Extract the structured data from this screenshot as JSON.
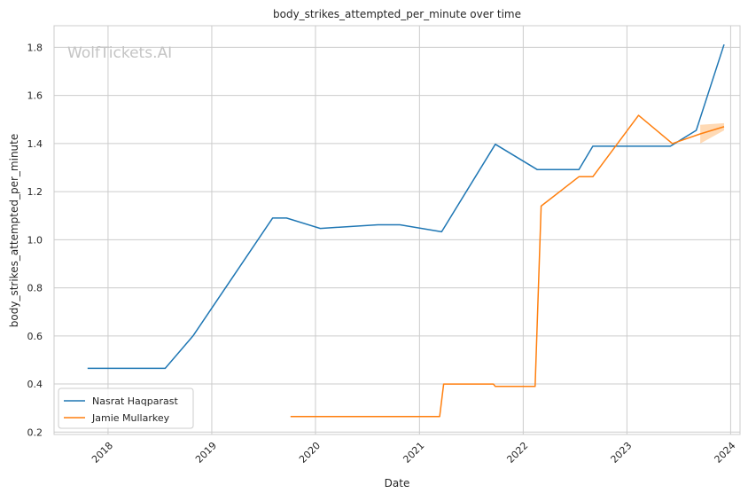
{
  "watermark": "WolfTickets.AI",
  "chart_data": {
    "type": "line",
    "title": "body_strikes_attempted_per_minute over time",
    "xlabel": "Date",
    "ylabel": "body_strikes_attempted_per_minute",
    "xlim": [
      "2017-06-25",
      "2024-02-03"
    ],
    "ylim": [
      0.19,
      1.89
    ],
    "x_ticks": [
      {
        "date": "2018-01-01",
        "label": "2018"
      },
      {
        "date": "2019-01-01",
        "label": "2019"
      },
      {
        "date": "2020-01-01",
        "label": "2020"
      },
      {
        "date": "2021-01-01",
        "label": "2021"
      },
      {
        "date": "2022-01-01",
        "label": "2022"
      },
      {
        "date": "2023-01-01",
        "label": "2023"
      },
      {
        "date": "2024-01-01",
        "label": "2024"
      }
    ],
    "y_ticks": [
      {
        "value": 0.2,
        "label": "0.2"
      },
      {
        "value": 0.4,
        "label": "0.4"
      },
      {
        "value": 0.6,
        "label": "0.6"
      },
      {
        "value": 0.8,
        "label": "0.8"
      },
      {
        "value": 1.0,
        "label": "1.0"
      },
      {
        "value": 1.2,
        "label": "1.2"
      },
      {
        "value": 1.4,
        "label": "1.4"
      },
      {
        "value": 1.6,
        "label": "1.6"
      },
      {
        "value": 1.8,
        "label": "1.8"
      }
    ],
    "grid": true,
    "legend_position": "lower-left",
    "series": [
      {
        "name": "Nasrat Haqparast",
        "color": "#1f77b4",
        "points": [
          [
            "2017-10-21",
            0.465
          ],
          [
            "2018-07-21",
            0.465
          ],
          [
            "2018-10-27",
            0.6
          ],
          [
            "2019-08-03",
            1.09
          ],
          [
            "2019-09-21",
            1.09
          ],
          [
            "2020-01-18",
            1.047
          ],
          [
            "2020-08-08",
            1.062
          ],
          [
            "2020-10-24",
            1.062
          ],
          [
            "2021-03-20",
            1.033
          ],
          [
            "2021-09-25",
            1.397
          ],
          [
            "2022-02-19",
            1.292
          ],
          [
            "2022-07-16",
            1.292
          ],
          [
            "2022-09-03",
            1.389
          ],
          [
            "2023-06-03",
            1.389
          ],
          [
            "2023-09-02",
            1.455
          ],
          [
            "2023-12-09",
            1.812
          ]
        ]
      },
      {
        "name": "Jamie Mullarkey",
        "color": "#ff7f0e",
        "points": [
          [
            "2019-10-05",
            0.265
          ],
          [
            "2021-03-13",
            0.265
          ],
          [
            "2021-03-27",
            0.4
          ],
          [
            "2021-09-18",
            0.4
          ],
          [
            "2021-09-25",
            0.39
          ],
          [
            "2022-02-12",
            0.39
          ],
          [
            "2022-03-05",
            1.14
          ],
          [
            "2022-07-16",
            1.262
          ],
          [
            "2022-09-03",
            1.262
          ],
          [
            "2023-02-11",
            1.517
          ],
          [
            "2023-06-10",
            1.4
          ],
          [
            "2023-09-16",
            1.44
          ],
          [
            "2023-12-09",
            1.47
          ]
        ],
        "band": {
          "color": "#ffbb78",
          "x": [
            "2023-09-16",
            "2023-12-09"
          ],
          "upper": [
            1.478,
            1.485
          ],
          "lower": [
            1.4,
            1.455
          ]
        }
      }
    ]
  }
}
